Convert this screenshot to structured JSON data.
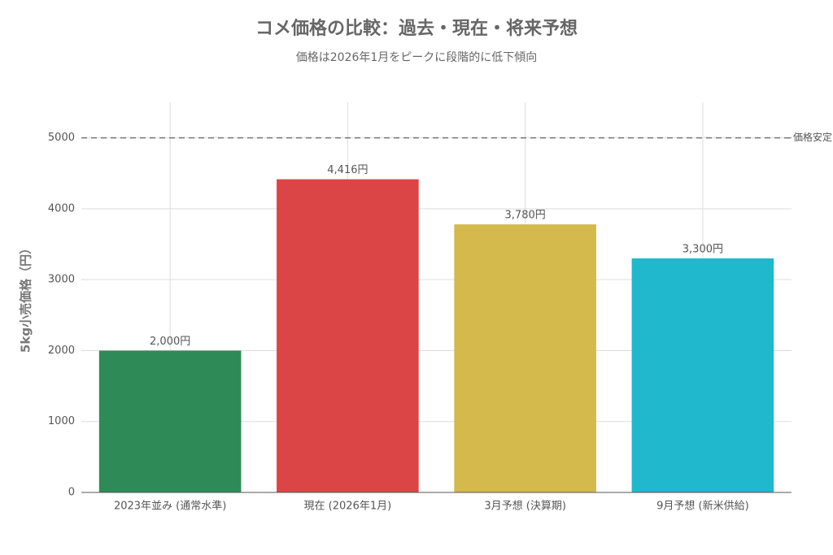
{
  "chart_data": {
    "type": "bar",
    "title": "コメ価格の比較：過去・現在・将来予想",
    "subtitle": "価格は2026年1月をピークに段階的に低下傾向",
    "y_label": "5kg小売価格（円）",
    "categories": [
      "2023年並み (通常水準)",
      "現在 (2026年1月)",
      "3月予想 (決算期)",
      "9月予想 (新米供給)"
    ],
    "values": [
      2000,
      4416,
      3780,
      3300
    ],
    "value_labels": [
      "2,000円",
      "4,416円",
      "3,780円",
      "3,300円"
    ],
    "colors": [
      "#2e8b57",
      "#dc4545",
      "#d4b94c",
      "#20b8cc"
    ],
    "ylim": [
      0,
      5500
    ],
    "yticks": [
      0,
      1000,
      2000,
      3000,
      4000,
      5000
    ],
    "grid": true,
    "reference_line": {
      "value": 5000,
      "label": "価格安定"
    }
  }
}
